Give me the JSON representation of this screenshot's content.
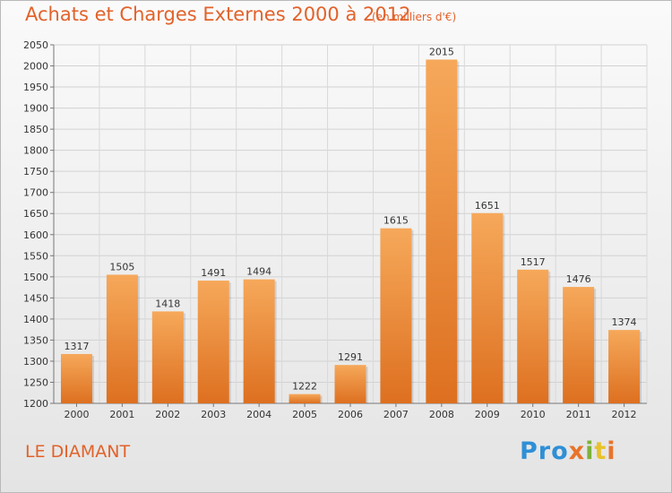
{
  "title": "Achats et Charges Externes 2000 à 2012",
  "unit_note": "(en milliers d'€)",
  "location": "LE DIAMANT",
  "brand": {
    "p": "Pro",
    "x": "x",
    "i": "i",
    "t": "t",
    "i2": "i"
  },
  "colors": {
    "bar_top": "#f6a85a",
    "bar_bottom": "#dd7020",
    "text_accent": "#e2622a"
  },
  "chart_data": {
    "type": "bar",
    "title": "Achats et Charges Externes 2000 à 2012",
    "subtitle": "(en milliers d'€)",
    "xlabel": "",
    "ylabel": "",
    "categories": [
      "2000",
      "2001",
      "2002",
      "2003",
      "2004",
      "2005",
      "2006",
      "2007",
      "2008",
      "2009",
      "2010",
      "2011",
      "2012"
    ],
    "values": [
      1317,
      1505,
      1418,
      1491,
      1494,
      1222,
      1291,
      1615,
      2015,
      1651,
      1517,
      1476,
      1374
    ],
    "ylim": [
      1200,
      2050
    ],
    "yticks": [
      1200,
      1250,
      1300,
      1350,
      1400,
      1450,
      1500,
      1550,
      1600,
      1650,
      1700,
      1750,
      1800,
      1850,
      1900,
      1950,
      2000,
      2050
    ],
    "grid": true,
    "legend": "none"
  }
}
